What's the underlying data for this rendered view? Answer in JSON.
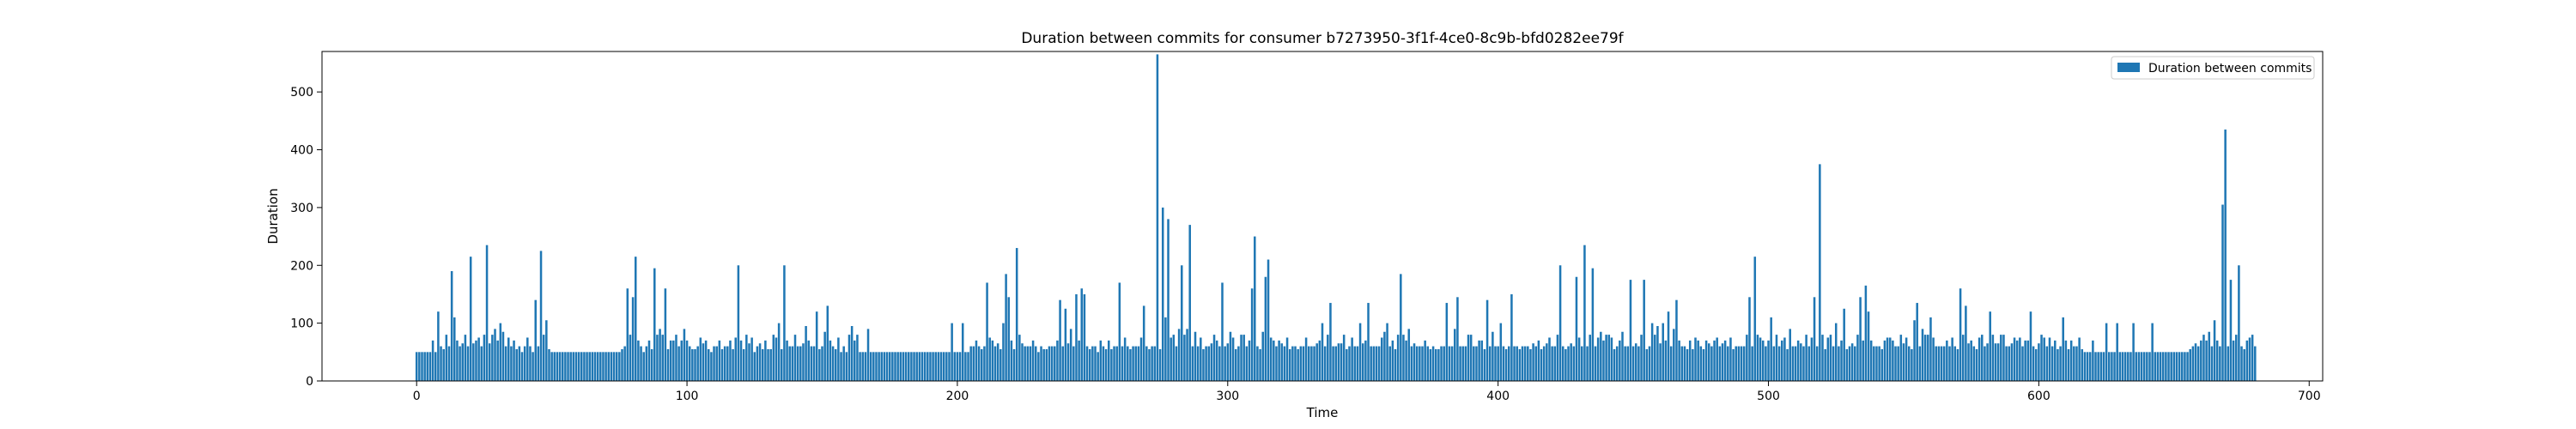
{
  "chart_data": {
    "type": "bar",
    "title": "Duration between commits for consumer b7273950-3f1f-4ce0-8c9b-bfd0282ee79f",
    "xlabel": "Time",
    "ylabel": "Duration",
    "xlim": [
      -35,
      705
    ],
    "ylim": [
      0,
      570
    ],
    "xticks": [
      0,
      100,
      200,
      300,
      400,
      500,
      600,
      700
    ],
    "yticks": [
      0,
      100,
      200,
      300,
      400,
      500
    ],
    "grid": false,
    "legend": {
      "placement": "top-right",
      "entries": [
        "Duration between commits"
      ]
    },
    "colors": {
      "bar": "#1f77b4"
    },
    "series": [
      {
        "name": "Duration between commits",
        "x_start": 0,
        "values": [
          50,
          50,
          50,
          50,
          50,
          50,
          70,
          50,
          120,
          60,
          55,
          80,
          60,
          190,
          110,
          70,
          60,
          65,
          80,
          60,
          215,
          65,
          70,
          75,
          60,
          80,
          235,
          65,
          80,
          90,
          70,
          100,
          85,
          60,
          75,
          60,
          70,
          55,
          60,
          50,
          60,
          75,
          60,
          50,
          140,
          60,
          225,
          80,
          105,
          55,
          50,
          50,
          50,
          50,
          50,
          50,
          50,
          50,
          50,
          50,
          50,
          50,
          50,
          50,
          50,
          50,
          50,
          50,
          50,
          50,
          50,
          50,
          50,
          50,
          50,
          50,
          55,
          60,
          160,
          80,
          145,
          215,
          70,
          60,
          50,
          60,
          70,
          55,
          195,
          80,
          90,
          80,
          160,
          55,
          70,
          70,
          80,
          60,
          70,
          90,
          70,
          60,
          55,
          55,
          60,
          75,
          65,
          70,
          55,
          50,
          60,
          60,
          70,
          55,
          60,
          60,
          70,
          55,
          75,
          200,
          70,
          55,
          80,
          65,
          75,
          50,
          60,
          65,
          55,
          70,
          55,
          55,
          80,
          75,
          100,
          55,
          200,
          70,
          60,
          60,
          80,
          60,
          60,
          65,
          95,
          70,
          60,
          60,
          120,
          55,
          60,
          85,
          130,
          70,
          60,
          55,
          75,
          50,
          60,
          50,
          80,
          95,
          70,
          80,
          50,
          50,
          50,
          90,
          50,
          50,
          50,
          50,
          50,
          50,
          50,
          50,
          50,
          50,
          50,
          50,
          50,
          50,
          50,
          50,
          50,
          50,
          50,
          50,
          50,
          50,
          50,
          50,
          50,
          50,
          50,
          50,
          50,
          50,
          100,
          50,
          50,
          50,
          100,
          50,
          50,
          60,
          60,
          70,
          60,
          55,
          60,
          170,
          75,
          70,
          60,
          65,
          55,
          100,
          185,
          145,
          70,
          55,
          230,
          80,
          65,
          60,
          60,
          60,
          70,
          60,
          50,
          60,
          55,
          55,
          60,
          60,
          60,
          70,
          140,
          60,
          125,
          65,
          90,
          60,
          150,
          70,
          160,
          150,
          60,
          55,
          60,
          60,
          50,
          70,
          60,
          55,
          70,
          55,
          60,
          60,
          170,
          60,
          75,
          60,
          55,
          60,
          60,
          60,
          75,
          130,
          60,
          55,
          60,
          60,
          565,
          55,
          300,
          110,
          280,
          75,
          80,
          60,
          90,
          200,
          80,
          90,
          270,
          60,
          85,
          60,
          75,
          55,
          60,
          60,
          65,
          80,
          70,
          60,
          170,
          60,
          65,
          85,
          75,
          55,
          60,
          80,
          80,
          60,
          70,
          160,
          250,
          60,
          55,
          85,
          180,
          210,
          75,
          70,
          60,
          70,
          65,
          60,
          75,
          55,
          60,
          60,
          55,
          60,
          60,
          75,
          60,
          60,
          60,
          65,
          70,
          100,
          60,
          80,
          135,
          60,
          60,
          65,
          65,
          80,
          55,
          60,
          75,
          60,
          60,
          100,
          65,
          70,
          135,
          60,
          60,
          60,
          60,
          75,
          85,
          100,
          60,
          70,
          55,
          80,
          185,
          80,
          70,
          90,
          60,
          65,
          60,
          60,
          60,
          70,
          60,
          55,
          60,
          55,
          55,
          60,
          60,
          135,
          60,
          60,
          90,
          145,
          60,
          60,
          60,
          80,
          80,
          60,
          60,
          70,
          70,
          55,
          140,
          60,
          85,
          60,
          60,
          100,
          60,
          55,
          60,
          150,
          60,
          60,
          55,
          60,
          60,
          60,
          55,
          65,
          60,
          70,
          55,
          60,
          65,
          75,
          60,
          60,
          80,
          200,
          60,
          55,
          60,
          65,
          60,
          180,
          75,
          60,
          235,
          60,
          80,
          195,
          60,
          75,
          85,
          70,
          80,
          80,
          75,
          55,
          60,
          70,
          85,
          60,
          60,
          175,
          60,
          65,
          60,
          80,
          175,
          55,
          60,
          100,
          80,
          95,
          65,
          100,
          70,
          120,
          60,
          90,
          140,
          70,
          60,
          60,
          55,
          70,
          55,
          75,
          70,
          60,
          55,
          70,
          65,
          60,
          70,
          75,
          60,
          65,
          70,
          60,
          75,
          55,
          60,
          60,
          60,
          60,
          80,
          145,
          60,
          215,
          80,
          75,
          70,
          60,
          70,
          110,
          60,
          80,
          60,
          70,
          75,
          55,
          90,
          60,
          60,
          70,
          65,
          60,
          80,
          60,
          75,
          145,
          60,
          375,
          80,
          55,
          75,
          80,
          60,
          100,
          60,
          70,
          125,
          55,
          60,
          65,
          60,
          80,
          145,
          70,
          165,
          120,
          70,
          60,
          60,
          60,
          55,
          70,
          75,
          75,
          70,
          60,
          60,
          80,
          65,
          75,
          60,
          55,
          105,
          135,
          60,
          90,
          80,
          80,
          110,
          75,
          60,
          60,
          60,
          60,
          70,
          60,
          75,
          60,
          55,
          160,
          80,
          130,
          65,
          70,
          60,
          55,
          75,
          80,
          60,
          65,
          120,
          80,
          65,
          65,
          80,
          80,
          60,
          60,
          65,
          75,
          70,
          75,
          60,
          70,
          70,
          120,
          60,
          55,
          65,
          80,
          75,
          60,
          75,
          60,
          70,
          55,
          60,
          110,
          70,
          55,
          70,
          60,
          60,
          75,
          55,
          50,
          50,
          50,
          70,
          50,
          50,
          50,
          50,
          100,
          50,
          50,
          50,
          100,
          50,
          50,
          50,
          50,
          50,
          100,
          50,
          50,
          50,
          50,
          50,
          50,
          100,
          50,
          50,
          50,
          50,
          50,
          50,
          50,
          50,
          50,
          50,
          50,
          50,
          50,
          55,
          60,
          65,
          60,
          70,
          80,
          70,
          85,
          60,
          105,
          70,
          60,
          305,
          435,
          60,
          175,
          70,
          80,
          200,
          60,
          55,
          70,
          75,
          80,
          60
        ]
      }
    ]
  }
}
